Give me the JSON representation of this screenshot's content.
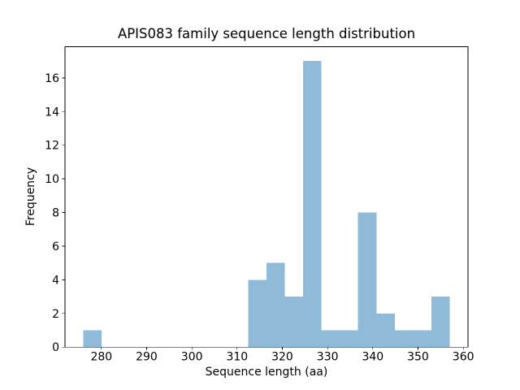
{
  "chart_data": {
    "type": "bar",
    "subtype": "histogram",
    "title": "APIS083 family sequence length distribution",
    "xlabel": "Sequence length (aa)",
    "ylabel": "Frequency",
    "bin_edges": [
      276.0,
      280.05,
      284.1,
      288.15,
      292.2,
      296.25,
      300.3,
      304.35,
      308.4,
      312.45,
      316.5,
      320.55,
      324.6,
      328.65,
      332.7,
      336.75,
      340.8,
      344.85,
      348.9,
      352.95,
      357.0
    ],
    "counts": [
      1,
      0,
      0,
      0,
      0,
      0,
      0,
      0,
      0,
      4,
      5,
      3,
      17,
      1,
      1,
      8,
      2,
      1,
      1,
      3
    ],
    "xticks": [
      280,
      290,
      300,
      310,
      320,
      330,
      340,
      350,
      360
    ],
    "yticks": [
      0,
      2,
      4,
      6,
      8,
      10,
      12,
      14,
      16
    ],
    "xlim": [
      271.95,
      361.05
    ],
    "ylim": [
      0,
      17.85
    ],
    "bar_color": "#8FBBD9",
    "axis_color": "#000000",
    "text_color": "#000000",
    "background_color": "#FFFFFF",
    "grid": false,
    "legend_position": "none"
  }
}
